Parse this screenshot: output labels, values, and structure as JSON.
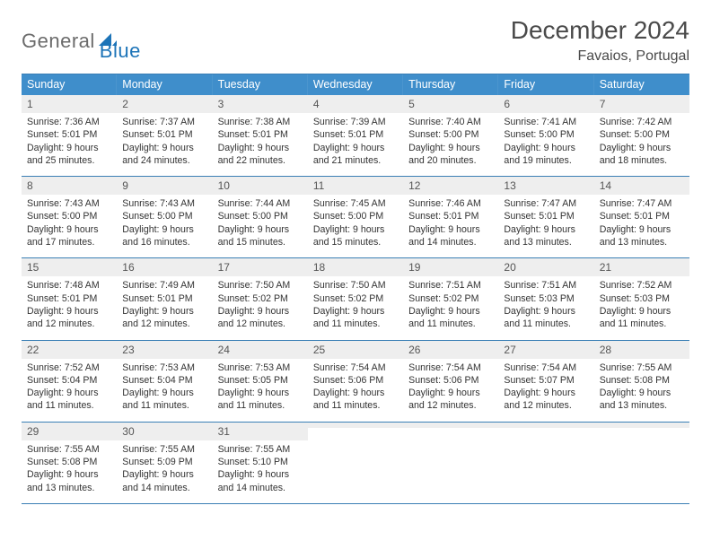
{
  "brandGray": "General",
  "brandBlue": "Blue",
  "monthTitle": "December 2024",
  "location": "Favaios, Portugal",
  "dayNames": [
    "Sunday",
    "Monday",
    "Tuesday",
    "Wednesday",
    "Thursday",
    "Friday",
    "Saturday"
  ],
  "colors": {
    "headerBg": "#3f8ecb",
    "cellHeaderBg": "#eeeeee",
    "ruleColor": "#3a7fb5"
  },
  "weeks": [
    [
      {
        "n": "1",
        "sr": "7:36 AM",
        "ss": "5:01 PM",
        "dl": "9 hours and 25 minutes."
      },
      {
        "n": "2",
        "sr": "7:37 AM",
        "ss": "5:01 PM",
        "dl": "9 hours and 24 minutes."
      },
      {
        "n": "3",
        "sr": "7:38 AM",
        "ss": "5:01 PM",
        "dl": "9 hours and 22 minutes."
      },
      {
        "n": "4",
        "sr": "7:39 AM",
        "ss": "5:01 PM",
        "dl": "9 hours and 21 minutes."
      },
      {
        "n": "5",
        "sr": "7:40 AM",
        "ss": "5:00 PM",
        "dl": "9 hours and 20 minutes."
      },
      {
        "n": "6",
        "sr": "7:41 AM",
        "ss": "5:00 PM",
        "dl": "9 hours and 19 minutes."
      },
      {
        "n": "7",
        "sr": "7:42 AM",
        "ss": "5:00 PM",
        "dl": "9 hours and 18 minutes."
      }
    ],
    [
      {
        "n": "8",
        "sr": "7:43 AM",
        "ss": "5:00 PM",
        "dl": "9 hours and 17 minutes."
      },
      {
        "n": "9",
        "sr": "7:43 AM",
        "ss": "5:00 PM",
        "dl": "9 hours and 16 minutes."
      },
      {
        "n": "10",
        "sr": "7:44 AM",
        "ss": "5:00 PM",
        "dl": "9 hours and 15 minutes."
      },
      {
        "n": "11",
        "sr": "7:45 AM",
        "ss": "5:00 PM",
        "dl": "9 hours and 15 minutes."
      },
      {
        "n": "12",
        "sr": "7:46 AM",
        "ss": "5:01 PM",
        "dl": "9 hours and 14 minutes."
      },
      {
        "n": "13",
        "sr": "7:47 AM",
        "ss": "5:01 PM",
        "dl": "9 hours and 13 minutes."
      },
      {
        "n": "14",
        "sr": "7:47 AM",
        "ss": "5:01 PM",
        "dl": "9 hours and 13 minutes."
      }
    ],
    [
      {
        "n": "15",
        "sr": "7:48 AM",
        "ss": "5:01 PM",
        "dl": "9 hours and 12 minutes."
      },
      {
        "n": "16",
        "sr": "7:49 AM",
        "ss": "5:01 PM",
        "dl": "9 hours and 12 minutes."
      },
      {
        "n": "17",
        "sr": "7:50 AM",
        "ss": "5:02 PM",
        "dl": "9 hours and 12 minutes."
      },
      {
        "n": "18",
        "sr": "7:50 AM",
        "ss": "5:02 PM",
        "dl": "9 hours and 11 minutes."
      },
      {
        "n": "19",
        "sr": "7:51 AM",
        "ss": "5:02 PM",
        "dl": "9 hours and 11 minutes."
      },
      {
        "n": "20",
        "sr": "7:51 AM",
        "ss": "5:03 PM",
        "dl": "9 hours and 11 minutes."
      },
      {
        "n": "21",
        "sr": "7:52 AM",
        "ss": "5:03 PM",
        "dl": "9 hours and 11 minutes."
      }
    ],
    [
      {
        "n": "22",
        "sr": "7:52 AM",
        "ss": "5:04 PM",
        "dl": "9 hours and 11 minutes."
      },
      {
        "n": "23",
        "sr": "7:53 AM",
        "ss": "5:04 PM",
        "dl": "9 hours and 11 minutes."
      },
      {
        "n": "24",
        "sr": "7:53 AM",
        "ss": "5:05 PM",
        "dl": "9 hours and 11 minutes."
      },
      {
        "n": "25",
        "sr": "7:54 AM",
        "ss": "5:06 PM",
        "dl": "9 hours and 11 minutes."
      },
      {
        "n": "26",
        "sr": "7:54 AM",
        "ss": "5:06 PM",
        "dl": "9 hours and 12 minutes."
      },
      {
        "n": "27",
        "sr": "7:54 AM",
        "ss": "5:07 PM",
        "dl": "9 hours and 12 minutes."
      },
      {
        "n": "28",
        "sr": "7:55 AM",
        "ss": "5:08 PM",
        "dl": "9 hours and 13 minutes."
      }
    ],
    [
      {
        "n": "29",
        "sr": "7:55 AM",
        "ss": "5:08 PM",
        "dl": "9 hours and 13 minutes."
      },
      {
        "n": "30",
        "sr": "7:55 AM",
        "ss": "5:09 PM",
        "dl": "9 hours and 14 minutes."
      },
      {
        "n": "31",
        "sr": "7:55 AM",
        "ss": "5:10 PM",
        "dl": "9 hours and 14 minutes."
      },
      {
        "n": "",
        "sr": "",
        "ss": "",
        "dl": ""
      },
      {
        "n": "",
        "sr": "",
        "ss": "",
        "dl": ""
      },
      {
        "n": "",
        "sr": "",
        "ss": "",
        "dl": ""
      },
      {
        "n": "",
        "sr": "",
        "ss": "",
        "dl": ""
      }
    ]
  ],
  "labels": {
    "sunrise": "Sunrise: ",
    "sunset": "Sunset: ",
    "daylight": "Daylight: "
  }
}
